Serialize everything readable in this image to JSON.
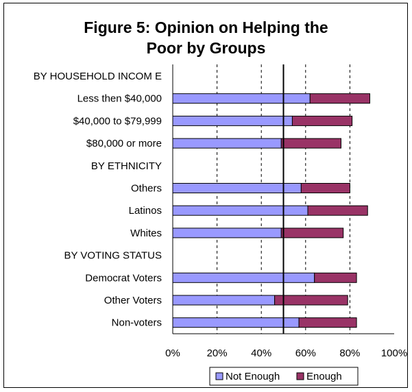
{
  "chart_data": {
    "type": "bar",
    "orientation": "horizontal",
    "stacked": true,
    "title": "Figure 5: Opinion on Helping the Poor by Groups",
    "title_lines": [
      "Figure 5: Opinion on Helping the",
      "Poor by Groups"
    ],
    "categories": [
      "BY HOUSEHOLD INCOM E",
      "Less then $40,000",
      "$40,000 to $79,999",
      "$80,000 or more",
      "BY ETHNICITY",
      "Others",
      "Latinos",
      "Whites",
      "BY VOTING STATUS",
      "Democrat Voters",
      "Other Voters",
      "Non-voters"
    ],
    "series": [
      {
        "name": "Not Enough",
        "color": "#9999ff",
        "values": [
          null,
          62,
          54,
          49,
          null,
          58,
          61,
          49,
          null,
          64,
          46,
          57
        ]
      },
      {
        "name": "Enough",
        "color": "#993366",
        "values": [
          null,
          27,
          27,
          27,
          null,
          22,
          27,
          28,
          null,
          19,
          33,
          26
        ]
      }
    ],
    "xlim": [
      0,
      100
    ],
    "x_ticks": [
      "0%",
      "20%",
      "40%",
      "60%",
      "80%",
      "100%"
    ],
    "x_tick_values": [
      0,
      20,
      40,
      60,
      80,
      100
    ],
    "reference_line": 50,
    "grid": "vertical dashed",
    "legend_position": "bottom"
  }
}
